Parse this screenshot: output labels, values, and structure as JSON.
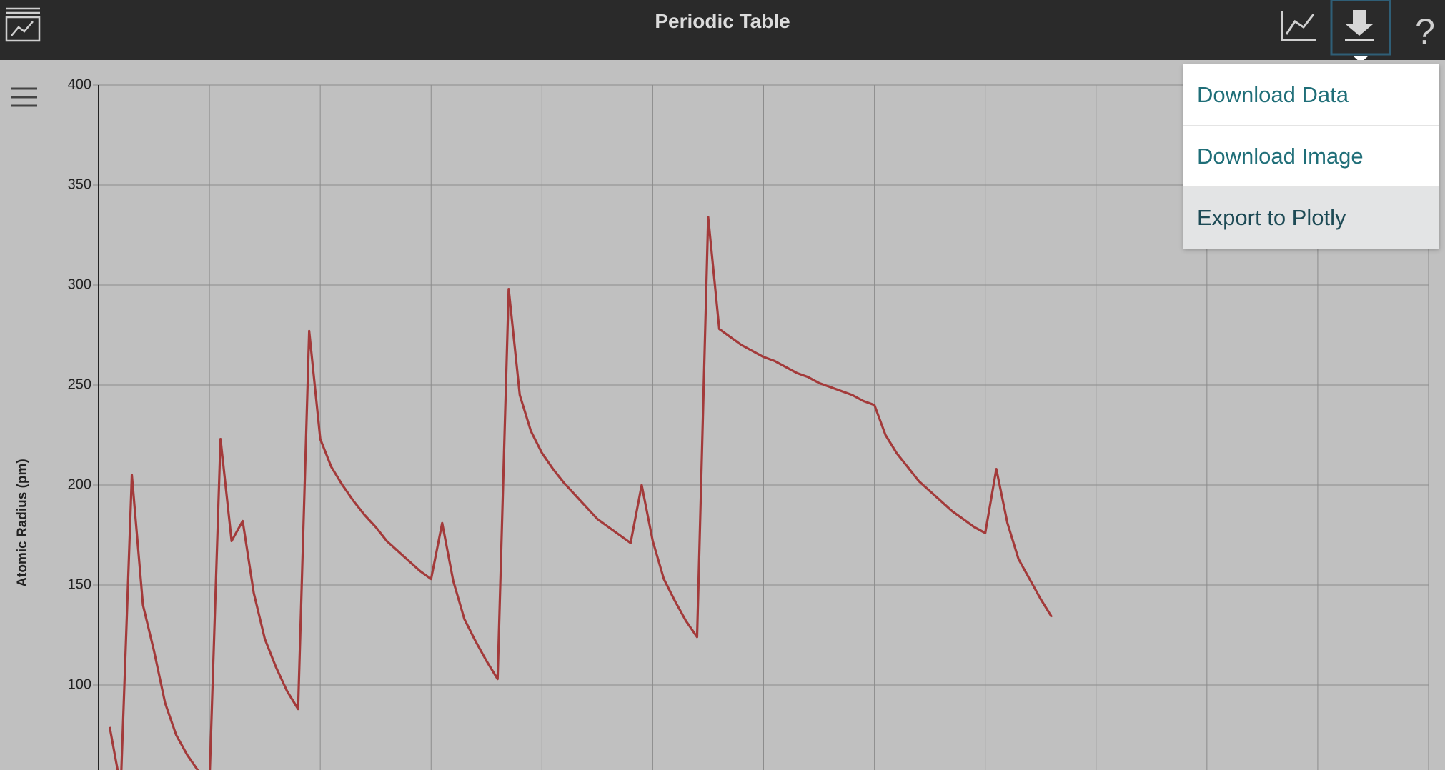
{
  "header": {
    "title": "Periodic Table"
  },
  "menu": {
    "items": [
      "Download Data",
      "Download Image",
      "Export to Plotly"
    ]
  },
  "chart_data": {
    "type": "line",
    "y_label": "Atomic Radius (pm)",
    "x": [
      1,
      2,
      3,
      4,
      5,
      6,
      7,
      8,
      9,
      10,
      11,
      12,
      13,
      14,
      15,
      16,
      17,
      18,
      19,
      20,
      21,
      22,
      23,
      24,
      25,
      26,
      27,
      28,
      29,
      30,
      31,
      32,
      33,
      34,
      35,
      36,
      37,
      38,
      39,
      40,
      41,
      42,
      43,
      44,
      45,
      46,
      47,
      48,
      49,
      50,
      51,
      52,
      53,
      54,
      55,
      56,
      57,
      58,
      59,
      60,
      61,
      62,
      63,
      64,
      65,
      66,
      67,
      68,
      69,
      70,
      71,
      72,
      73,
      74,
      75,
      76,
      77,
      78,
      79,
      80,
      81,
      82,
      83,
      84,
      85,
      86
    ],
    "series": [
      {
        "color": "#a33a3a",
        "values": [
          79,
          49,
          205,
          140,
          117,
          91,
          75,
          65,
          57,
          51,
          223,
          172,
          182,
          146,
          123,
          109,
          97,
          88,
          277,
          223,
          209,
          200,
          192,
          185,
          179,
          172,
          167,
          162,
          157,
          153,
          181,
          152,
          133,
          122,
          112,
          103,
          298,
          245,
          227,
          216,
          208,
          201,
          195,
          189,
          183,
          179,
          175,
          171,
          200,
          172,
          153,
          142,
          132,
          124,
          334,
          278,
          274,
          270,
          267,
          264,
          262,
          259,
          256,
          254,
          251,
          249,
          247,
          245,
          242,
          240,
          225,
          216,
          209,
          202,
          197,
          192,
          187,
          183,
          179,
          176,
          208,
          181,
          163,
          153,
          143,
          134
        ]
      }
    ],
    "xlim": [
      0,
      120
    ],
    "xticks": [
      0,
      10,
      20,
      30,
      40,
      50,
      60,
      70,
      80,
      90,
      100,
      110,
      120
    ],
    "ylim": [
      57.5,
      400
    ],
    "yticks": [
      100,
      150,
      200,
      250,
      300,
      350,
      400
    ],
    "grid": true
  }
}
